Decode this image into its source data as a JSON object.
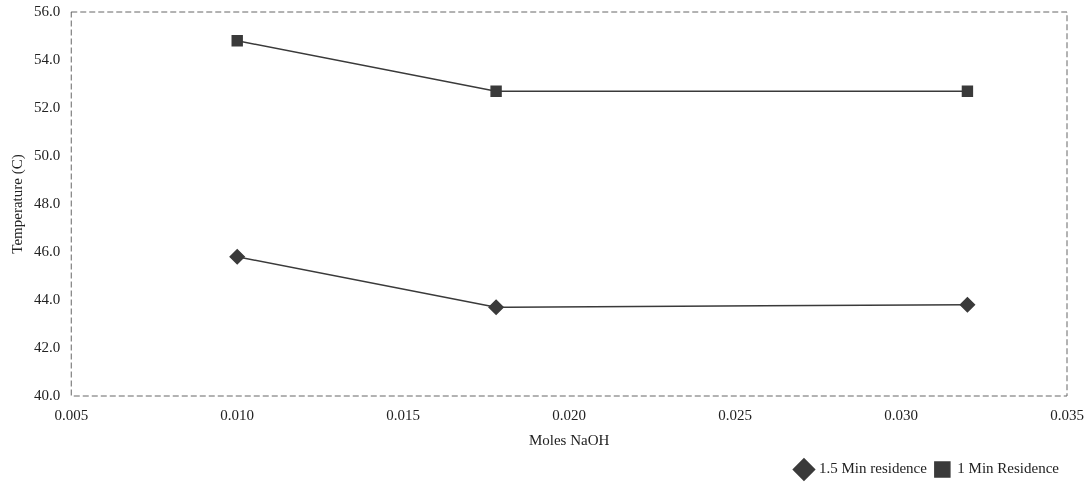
{
  "chart_data": {
    "type": "line",
    "xlabel": "Moles NaOH",
    "ylabel": "Temperature (C)",
    "x": [
      0.01,
      0.0178,
      0.032
    ],
    "series": [
      {
        "name": "1.5 Min residence",
        "color": "#3a3a3a",
        "marker": "diamond",
        "values": [
          45.8,
          43.7,
          43.8
        ]
      },
      {
        "name": "1 Min Residence",
        "color": "#3a3a3a",
        "marker": "square",
        "values": [
          54.8,
          52.7,
          52.7
        ]
      }
    ],
    "xlim": [
      0.005,
      0.035
    ],
    "xticks": [
      {
        "value": 0.005,
        "label": "0.005"
      },
      {
        "value": 0.01,
        "label": "0.010"
      },
      {
        "value": 0.015,
        "label": "0.015"
      },
      {
        "value": 0.02,
        "label": "0.020"
      },
      {
        "value": 0.025,
        "label": "0.025"
      },
      {
        "value": 0.03,
        "label": "0.030"
      },
      {
        "value": 0.035,
        "label": "0.035"
      }
    ],
    "ylim": [
      40,
      56
    ],
    "yticks": [
      {
        "value": 40,
        "label": "40.0"
      },
      {
        "value": 42,
        "label": "42.0"
      },
      {
        "value": 44,
        "label": "44.0"
      },
      {
        "value": 46,
        "label": "46.0"
      },
      {
        "value": 48,
        "label": "48.0"
      },
      {
        "value": 50,
        "label": "50.0"
      },
      {
        "value": 52,
        "label": "52.0"
      },
      {
        "value": 54,
        "label": "54.0"
      },
      {
        "value": 56,
        "label": "56.0"
      }
    ],
    "grid": false,
    "legend": "bottom right",
    "line_style": "solid"
  }
}
